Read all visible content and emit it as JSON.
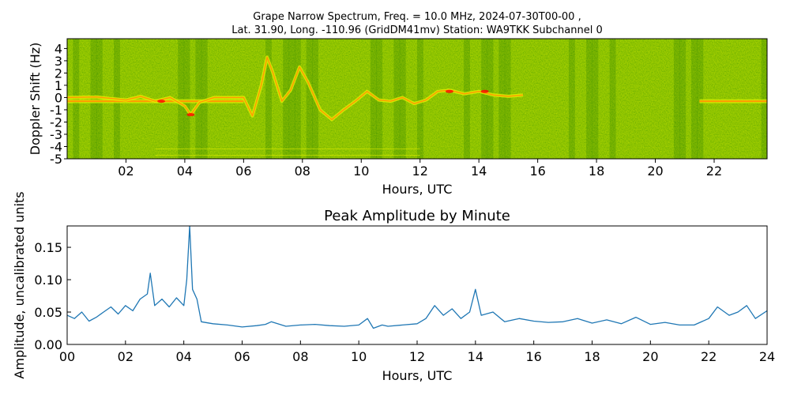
{
  "chart_data": [
    {
      "type": "heatmap",
      "title_line1": "Grape Narrow Spectrum, Freq. = 10.0 MHz, 2024-07-30T00-00 ,",
      "title_line2": "Lat.  31.90, Long. -110.96 (GridDM41mv) Station: WA9TKK Subchannel 0",
      "xlabel": "Hours, UTC",
      "ylabel": "Doppler Shift (Hz)",
      "xlim": [
        0,
        23.8
      ],
      "ylim": [
        -5,
        4.8
      ],
      "xticks": [
        2,
        4,
        6,
        8,
        10,
        12,
        14,
        16,
        18,
        20,
        22
      ],
      "xtick_labels": [
        "02",
        "04",
        "06",
        "08",
        "10",
        "12",
        "14",
        "16",
        "18",
        "20",
        "22"
      ],
      "yticks": [
        4,
        3,
        2,
        1,
        0,
        -1,
        -2,
        -3,
        -4,
        -5
      ],
      "ytick_labels": [
        "4",
        "3",
        "2",
        "1",
        "0",
        "-1",
        "-2",
        "-3",
        "-4",
        "-5"
      ],
      "colormap": [
        "#1e7a00",
        "#3ea000",
        "#8fcf00",
        "#e8f000",
        "#ff9a00",
        "#ff0000"
      ],
      "doppler_trace": {
        "hours": [
          0,
          1,
          2,
          2.5,
          3,
          3.5,
          4,
          4.2,
          4.5,
          5,
          5.5,
          6,
          6.3,
          6.6,
          6.8,
          7,
          7.3,
          7.6,
          7.9,
          8.2,
          8.6,
          9,
          9.4,
          9.8,
          10.2,
          10.6,
          11,
          11.4,
          11.8,
          12.2,
          12.6,
          13,
          13.5,
          14,
          14.5,
          15,
          15.5
        ],
        "shift_hz": [
          0,
          0.05,
          -0.2,
          0.1,
          -0.3,
          0,
          -0.7,
          -1.4,
          -0.4,
          0,
          0,
          0,
          -1.5,
          1,
          3.3,
          2,
          -0.3,
          0.6,
          2.5,
          1.2,
          -1,
          -1.8,
          -1,
          -0.3,
          0.5,
          -0.2,
          -0.3,
          0,
          -0.5,
          -0.2,
          0.5,
          0.6,
          0.3,
          0.5,
          0.2,
          0.1,
          0.2
        ]
      },
      "steady_carrier_segments": [
        [
          0,
          6.0
        ],
        [
          21.5,
          23.8
        ]
      ]
    },
    {
      "type": "line",
      "title": "Peak Amplitude by Minute",
      "xlabel": "Hours, UTC",
      "ylabel": "Amplitude, uncalibrated units",
      "xlim": [
        0,
        24
      ],
      "ylim": [
        0,
        0.183
      ],
      "xticks": [
        0,
        2,
        4,
        6,
        8,
        10,
        12,
        14,
        16,
        18,
        20,
        22,
        24
      ],
      "xtick_labels": [
        "00",
        "02",
        "04",
        "06",
        "08",
        "10",
        "12",
        "14",
        "16",
        "18",
        "20",
        "22",
        "24"
      ],
      "yticks": [
        0,
        0.05,
        0.1,
        0.15
      ],
      "ytick_labels": [
        "0.00",
        "0.05",
        "0.10",
        "0.15"
      ],
      "line_color": "#1f77b4",
      "series": [
        {
          "x": [
            0,
            0.25,
            0.5,
            0.75,
            1,
            1.25,
            1.5,
            1.75,
            2,
            2.25,
            2.5,
            2.75,
            2.85,
            3,
            3.25,
            3.5,
            3.75,
            4,
            4.1,
            4.2,
            4.3,
            4.45,
            4.6,
            5,
            5.5,
            6,
            6.5,
            6.8,
            7,
            7.5,
            8,
            8.5,
            9,
            9.5,
            10,
            10.3,
            10.5,
            10.8,
            11,
            11.5,
            12,
            12.3,
            12.6,
            12.9,
            13.2,
            13.5,
            13.8,
            14,
            14.2,
            14.6,
            15,
            15.5,
            16,
            16.5,
            17,
            17.5,
            18,
            18.5,
            19,
            19.5,
            20,
            20.5,
            21,
            21.5,
            22,
            22.3,
            22.7,
            23,
            23.3,
            23.6,
            24
          ],
          "values": [
            0.045,
            0.04,
            0.05,
            0.036,
            0.042,
            0.05,
            0.058,
            0.047,
            0.06,
            0.052,
            0.07,
            0.078,
            0.11,
            0.06,
            0.07,
            0.058,
            0.072,
            0.06,
            0.1,
            0.183,
            0.085,
            0.07,
            0.035,
            0.032,
            0.03,
            0.027,
            0.029,
            0.031,
            0.035,
            0.028,
            0.03,
            0.031,
            0.029,
            0.028,
            0.03,
            0.04,
            0.025,
            0.03,
            0.028,
            0.03,
            0.032,
            0.04,
            0.06,
            0.045,
            0.055,
            0.04,
            0.05,
            0.085,
            0.045,
            0.05,
            0.035,
            0.04,
            0.036,
            0.034,
            0.035,
            0.04,
            0.033,
            0.038,
            0.032,
            0.042,
            0.031,
            0.034,
            0.03,
            0.03,
            0.04,
            0.058,
            0.045,
            0.05,
            0.06,
            0.04,
            0.052
          ]
        }
      ]
    }
  ]
}
